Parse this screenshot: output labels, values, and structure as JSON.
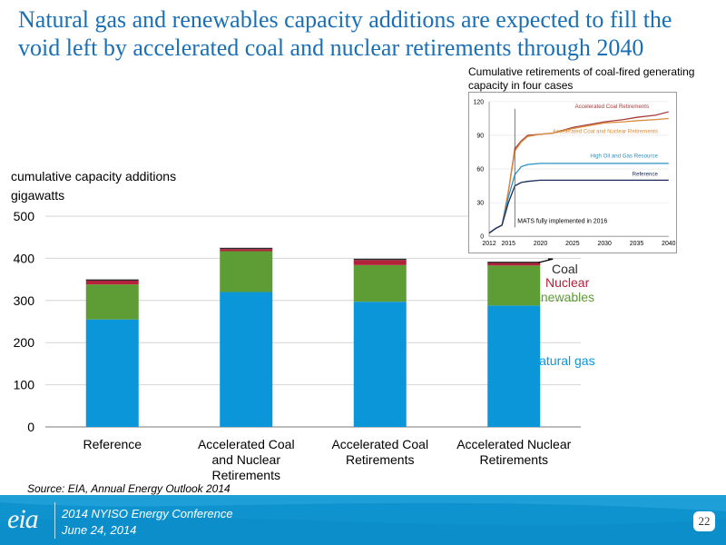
{
  "title": "Natural gas and renewables capacity additions are expected to fill the void left by accelerated coal and nuclear retirements through 2040",
  "colors": {
    "natural_gas": "#0a96d8",
    "renewables": "#5e9c35",
    "nuclear": "#b3213b",
    "coal": "#2b2b2b",
    "accent_title": "#1a6fb5",
    "footer": "#0e93cf"
  },
  "chart_data": [
    {
      "type": "bar",
      "stacked": true,
      "ylabel_line1": "cumulative capacity additions",
      "ylabel_line2": "gigawatts",
      "ylim": [
        0,
        500
      ],
      "yticks": [
        0,
        100,
        200,
        300,
        400,
        500
      ],
      "grid": true,
      "categories": [
        [
          "Reference"
        ],
        [
          "Accelerated Coal",
          "and Nuclear",
          "Retirements"
        ],
        [
          "Accelerated Coal",
          "Retirements"
        ],
        [
          "Accelerated Nuclear",
          "Retirements"
        ]
      ],
      "series": [
        {
          "name": "Natural gas",
          "color": "#0a96d8",
          "values": [
            255,
            320,
            297,
            288
          ]
        },
        {
          "name": "Renewables",
          "color": "#5e9c35",
          "values": [
            83,
            97,
            87,
            95
          ]
        },
        {
          "name": "Nuclear",
          "color": "#b3213b",
          "values": [
            9,
            5,
            12,
            6
          ]
        },
        {
          "name": "Coal",
          "color": "#2b2b2b",
          "values": [
            3,
            3,
            3,
            3
          ]
        }
      ],
      "legend": {
        "placement": "right",
        "style": "inline labels"
      }
    },
    {
      "type": "line",
      "title_line1": "Cumulative retirements of coal-fired generating",
      "title_line2": "capacity in four cases",
      "xticks": [
        2012,
        2015,
        2020,
        2025,
        2030,
        2035,
        2040
      ],
      "xlim": [
        2012,
        2040
      ],
      "ylim": [
        0,
        120
      ],
      "yticks": [
        0,
        30,
        60,
        90,
        120
      ],
      "x": [
        2012,
        2013,
        2014,
        2015,
        2016,
        2017,
        2018,
        2020,
        2022,
        2025,
        2028,
        2030,
        2033,
        2035,
        2038,
        2040
      ],
      "series": [
        {
          "name": "Accelerated Coal Retirements",
          "color": "#a83a3a",
          "values": [
            3,
            7,
            10,
            40,
            78,
            85,
            90,
            91,
            92,
            97,
            100,
            102,
            104,
            106,
            108,
            111
          ]
        },
        {
          "name": "Accelerated Coal and Nuclear Retirements",
          "color": "#d98c3c",
          "values": [
            3,
            7,
            10,
            40,
            76,
            84,
            89,
            91,
            92,
            96,
            99,
            101,
            102,
            103,
            104,
            105
          ]
        },
        {
          "name": "High Oil and Gas Resource",
          "color": "#2a8fc4",
          "values": [
            3,
            7,
            10,
            35,
            55,
            62,
            64,
            65,
            65,
            65,
            65,
            65,
            65,
            65,
            65,
            65
          ]
        },
        {
          "name": "Reference",
          "color": "#1a2c5c",
          "values": [
            3,
            7,
            10,
            30,
            45,
            48,
            49,
            50,
            50,
            50,
            50,
            50,
            50,
            50,
            50,
            50
          ]
        }
      ],
      "annotation": "MATS fully implemented in 2016",
      "annotation_x": 2016
    }
  ],
  "source_prefix": "Source:  ",
  "source_text": "EIA, Annual Energy Outlook 2014",
  "footer": {
    "logo": "eia",
    "line1": "2014 NYISO Energy Conference",
    "line2": "June 24, 2014",
    "page_number": "22"
  }
}
